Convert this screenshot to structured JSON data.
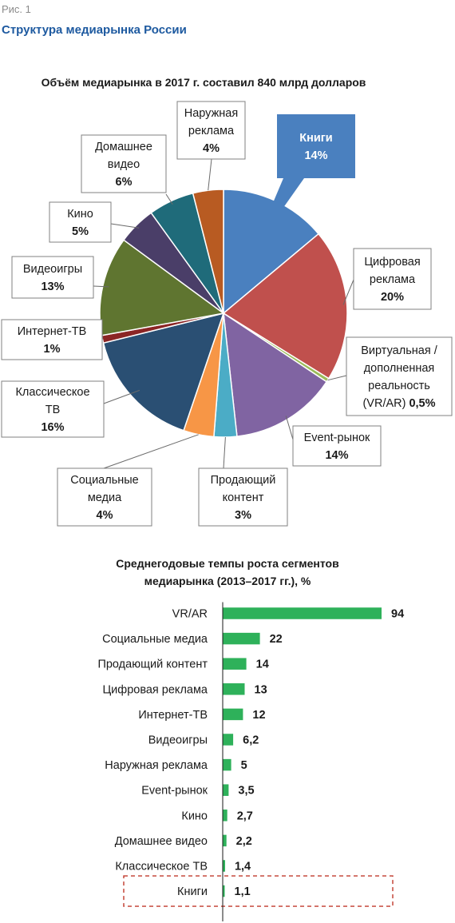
{
  "figure": {
    "label": "Рис. 1",
    "title": "Структура медиарынка России"
  },
  "colors": {
    "books": "#4a80bf",
    "digital_ads": "#c0504d",
    "vr_ar": "#9bbb59",
    "event": "#8064a2",
    "selling_content": "#4bacc6",
    "social": "#f79646",
    "classic_tv": "#2a4f73",
    "internet_tv": "#8b2525",
    "games": "#5f7530",
    "cinema": "#4a3e68",
    "home_video": "#1f6b7a",
    "outdoor": "#b85b22",
    "bar": "#2eb15a",
    "highlight": "#c0392b"
  },
  "chart_data": [
    {
      "type": "pie",
      "title": "Объём медиарынка в 2017 г. составил 840 млрд долларов",
      "slices": [
        {
          "key": "books",
          "label_lines": [
            "Книги"
          ],
          "value": 14,
          "value_label": "14%"
        },
        {
          "key": "digital_ads",
          "label_lines": [
            "Цифровая",
            "реклама"
          ],
          "value": 20,
          "value_label": "20%"
        },
        {
          "key": "vr_ar",
          "label_lines": [
            "Виртуальная /",
            "дополненная",
            "реальность",
            "(VR/AR)"
          ],
          "value": 0.5,
          "value_label": "0,5%"
        },
        {
          "key": "event",
          "label_lines": [
            "Event-рынок"
          ],
          "value": 14,
          "value_label": "14%"
        },
        {
          "key": "selling_content",
          "label_lines": [
            "Продающий",
            "контент"
          ],
          "value": 3,
          "value_label": "3%"
        },
        {
          "key": "social",
          "label_lines": [
            "Социальные",
            "медиа"
          ],
          "value": 4,
          "value_label": "4%"
        },
        {
          "key": "classic_tv",
          "label_lines": [
            "Классическое",
            "ТВ"
          ],
          "value": 16,
          "value_label": "16%"
        },
        {
          "key": "internet_tv",
          "label_lines": [
            "Интернет-ТВ"
          ],
          "value": 1,
          "value_label": "1%"
        },
        {
          "key": "games",
          "label_lines": [
            "Видеоигры"
          ],
          "value": 13,
          "value_label": "13%"
        },
        {
          "key": "cinema",
          "label_lines": [
            "Кино"
          ],
          "value": 5,
          "value_label": "5%"
        },
        {
          "key": "home_video",
          "label_lines": [
            "Домашнее",
            "видео"
          ],
          "value": 6,
          "value_label": "6%"
        },
        {
          "key": "outdoor",
          "label_lines": [
            "Наружная",
            "реклама"
          ],
          "value": 4,
          "value_label": "4%"
        }
      ],
      "highlight": "books"
    },
    {
      "type": "bar",
      "orientation": "horizontal",
      "title_lines": [
        "Среднегодовые темпы роста сегментов",
        "медиарынка (2013–2017 гг.), %"
      ],
      "categories": [
        "VR/AR",
        "Социальные медиа",
        "Продающий контент",
        "Цифровая реклама",
        "Интернет-ТВ",
        "Видеоигры",
        "Наружная реклама",
        "Event-рынок",
        "Кино",
        "Домашнее видео",
        "Классическое ТВ",
        "Книги"
      ],
      "values": [
        94,
        22,
        14,
        13,
        12,
        6.2,
        5,
        3.5,
        2.7,
        2.2,
        1.4,
        1.1
      ],
      "value_labels": [
        "94",
        "22",
        "14",
        "13",
        "12",
        "6,2",
        "5",
        "3,5",
        "2,7",
        "2,2",
        "1,4",
        "1,1"
      ],
      "xlim": [
        0,
        94
      ],
      "highlight": "Книги"
    }
  ]
}
